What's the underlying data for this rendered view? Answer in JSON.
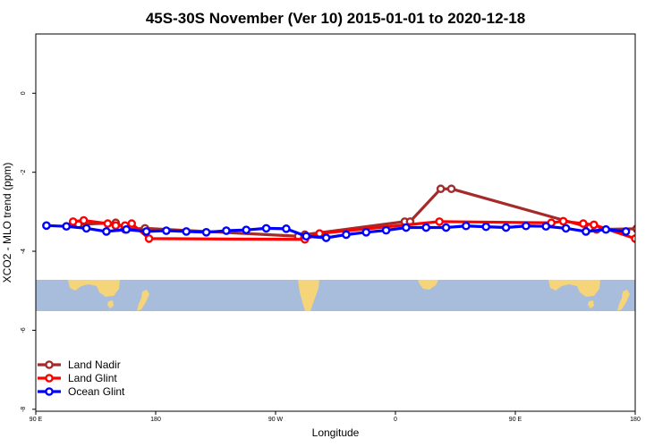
{
  "chart_data": {
    "type": "line",
    "title": "45S-30S November (Ver 10)   2015-01-01 to 2020-12-18",
    "xlabel": "Longitude",
    "ylabel": "XCO2 - MLO trend (ppm)",
    "xlim": [
      90,
      540
    ],
    "ylim": [
      -8.05,
      1.5
    ],
    "x_ticks": [
      {
        "value": 90,
        "label": "90 E"
      },
      {
        "value": 180,
        "label": "180"
      },
      {
        "value": 270,
        "label": "90 W"
      },
      {
        "value": 360,
        "label": "0"
      },
      {
        "value": 450,
        "label": "90 E"
      },
      {
        "value": 540,
        "label": "180"
      }
    ],
    "y_ticks": [
      {
        "value": 0,
        "label": "0"
      },
      {
        "value": -2,
        "label": "-2"
      },
      {
        "value": -4,
        "label": "-4"
      },
      {
        "value": -6,
        "label": "-6"
      },
      {
        "value": -8,
        "label": "-8"
      }
    ],
    "map_band": {
      "ocean_color": "#a8bcdc",
      "land_color": "#f5d47a",
      "lat_range": [
        "45S",
        "30S"
      ]
    },
    "legend_position": "bottom-left",
    "series": [
      {
        "name": "Land Nadir",
        "color": "#a52a2a",
        "x": [
          120,
          122,
          150,
          152,
          157,
          172,
          287,
          292,
          367,
          371,
          394,
          402,
          506,
          511,
          541
        ],
        "y": [
          -3.32,
          -3.32,
          -3.28,
          -3.4,
          -3.45,
          -3.42,
          -3.62,
          -3.58,
          -3.25,
          -3.25,
          -2.42,
          -2.42,
          -3.4,
          -3.45,
          -3.43
        ]
      },
      {
        "name": "Land Glint",
        "color": "#ff0000",
        "x": [
          118,
          126,
          144,
          150,
          157,
          162,
          175,
          292,
          303,
          393,
          477,
          486,
          501,
          509,
          540
        ],
        "y": [
          -3.25,
          -3.22,
          -3.3,
          -3.35,
          -3.35,
          -3.3,
          -3.68,
          -3.7,
          -3.55,
          -3.25,
          -3.28,
          -3.24,
          -3.3,
          -3.33,
          -3.68
        ]
      },
      {
        "name": "Ocean Glint",
        "color": "#0000ff",
        "x": [
          98,
          113,
          128,
          143,
          158,
          173,
          188,
          203,
          218,
          233,
          248,
          263,
          278,
          293,
          308,
          323,
          338,
          353,
          368,
          383,
          398,
          413,
          428,
          443,
          458,
          473,
          488,
          503,
          518,
          533
        ],
        "y": [
          -3.35,
          -3.37,
          -3.42,
          -3.5,
          -3.45,
          -3.5,
          -3.48,
          -3.5,
          -3.52,
          -3.48,
          -3.46,
          -3.42,
          -3.43,
          -3.62,
          -3.66,
          -3.58,
          -3.52,
          -3.47,
          -3.4,
          -3.4,
          -3.4,
          -3.36,
          -3.38,
          -3.4,
          -3.36,
          -3.37,
          -3.42,
          -3.5,
          -3.45,
          -3.5
        ]
      }
    ]
  }
}
